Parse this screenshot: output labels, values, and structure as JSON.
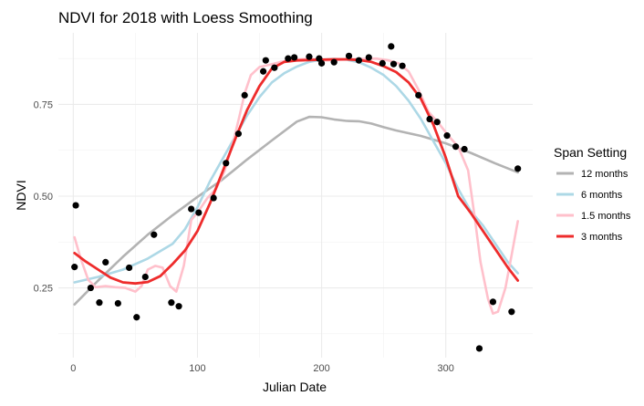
{
  "chart_data": {
    "type": "scatter",
    "title": "NDVI for 2018 with Loess Smoothing",
    "xlabel": "Julian Date",
    "ylabel": "NDVI",
    "xlim": [
      -12,
      370
    ],
    "ylim": [
      0.06,
      0.945
    ],
    "x_ticks": [
      0,
      100,
      200,
      300
    ],
    "x_tick_labels": [
      "0",
      "100",
      "200",
      "300"
    ],
    "y_ticks": [
      0.25,
      0.5,
      0.75
    ],
    "y_tick_labels": [
      "0.25",
      "0.50",
      "0.75"
    ],
    "grid": true,
    "legend_title": "Span Setting",
    "legend_position": "right",
    "points": [
      {
        "x": 1,
        "y": 0.307
      },
      {
        "x": 2,
        "y": 0.475
      },
      {
        "x": 14,
        "y": 0.25
      },
      {
        "x": 21,
        "y": 0.21
      },
      {
        "x": 26,
        "y": 0.32
      },
      {
        "x": 36,
        "y": 0.208
      },
      {
        "x": 45,
        "y": 0.305
      },
      {
        "x": 51,
        "y": 0.17
      },
      {
        "x": 58,
        "y": 0.28
      },
      {
        "x": 65,
        "y": 0.395
      },
      {
        "x": 79,
        "y": 0.21
      },
      {
        "x": 85,
        "y": 0.2
      },
      {
        "x": 95,
        "y": 0.465
      },
      {
        "x": 101,
        "y": 0.455
      },
      {
        "x": 113,
        "y": 0.495
      },
      {
        "x": 123,
        "y": 0.59
      },
      {
        "x": 133,
        "y": 0.67
      },
      {
        "x": 138,
        "y": 0.775
      },
      {
        "x": 153,
        "y": 0.84
      },
      {
        "x": 155,
        "y": 0.87
      },
      {
        "x": 162,
        "y": 0.85
      },
      {
        "x": 173,
        "y": 0.875
      },
      {
        "x": 178,
        "y": 0.878
      },
      {
        "x": 190,
        "y": 0.88
      },
      {
        "x": 198,
        "y": 0.875
      },
      {
        "x": 200,
        "y": 0.862
      },
      {
        "x": 210,
        "y": 0.865
      },
      {
        "x": 222,
        "y": 0.882
      },
      {
        "x": 230,
        "y": 0.87
      },
      {
        "x": 238,
        "y": 0.878
      },
      {
        "x": 249,
        "y": 0.862
      },
      {
        "x": 256,
        "y": 0.908
      },
      {
        "x": 258,
        "y": 0.86
      },
      {
        "x": 265,
        "y": 0.855
      },
      {
        "x": 278,
        "y": 0.775
      },
      {
        "x": 287,
        "y": 0.71
      },
      {
        "x": 293,
        "y": 0.702
      },
      {
        "x": 301,
        "y": 0.665
      },
      {
        "x": 308,
        "y": 0.635
      },
      {
        "x": 315,
        "y": 0.628
      },
      {
        "x": 327,
        "y": 0.085
      },
      {
        "x": 338,
        "y": 0.212
      },
      {
        "x": 353,
        "y": 0.185
      },
      {
        "x": 358,
        "y": 0.575
      }
    ],
    "series": [
      {
        "name": "12 months",
        "color": "#b3b3b3",
        "x": [
          1,
          20,
          40,
          60,
          80,
          100,
          120,
          140,
          160,
          180,
          190,
          200,
          210,
          220,
          230,
          240,
          250,
          260,
          280,
          300,
          320,
          340,
          358
        ],
        "y": [
          0.205,
          0.27,
          0.335,
          0.395,
          0.448,
          0.498,
          0.545,
          0.6,
          0.652,
          0.703,
          0.716,
          0.715,
          0.709,
          0.705,
          0.704,
          0.698,
          0.688,
          0.679,
          0.664,
          0.644,
          0.618,
          0.589,
          0.565
        ]
      },
      {
        "name": "6 months",
        "color": "#add8e6",
        "x": [
          1,
          20,
          40,
          60,
          80,
          90,
          100,
          110,
          120,
          130,
          140,
          150,
          160,
          170,
          180,
          190,
          200,
          210,
          220,
          230,
          240,
          250,
          260,
          270,
          280,
          290,
          300,
          310,
          320,
          330,
          340,
          350,
          358
        ],
        "y": [
          0.265,
          0.28,
          0.3,
          0.33,
          0.37,
          0.41,
          0.47,
          0.54,
          0.6,
          0.66,
          0.72,
          0.77,
          0.81,
          0.835,
          0.853,
          0.866,
          0.872,
          0.874,
          0.872,
          0.865,
          0.85,
          0.83,
          0.8,
          0.76,
          0.71,
          0.65,
          0.59,
          0.52,
          0.46,
          0.42,
          0.37,
          0.32,
          0.29
        ]
      },
      {
        "name": "1.5 months",
        "color": "#ffc0cb",
        "x": [
          1,
          6,
          12,
          18,
          26,
          34,
          42,
          50,
          55,
          60,
          66,
          72,
          78,
          83,
          89,
          95,
          101,
          108,
          115,
          122,
          129,
          134,
          138,
          143,
          150,
          158,
          166,
          176,
          190,
          204,
          218,
          232,
          244,
          254,
          262,
          270,
          278,
          286,
          294,
          302,
          310,
          318,
          323,
          328,
          334,
          338,
          342,
          348,
          353,
          358
        ],
        "y": [
          0.388,
          0.33,
          0.272,
          0.252,
          0.255,
          0.252,
          0.25,
          0.24,
          0.255,
          0.3,
          0.31,
          0.305,
          0.255,
          0.24,
          0.31,
          0.435,
          0.46,
          0.495,
          0.52,
          0.57,
          0.65,
          0.72,
          0.78,
          0.83,
          0.852,
          0.858,
          0.865,
          0.872,
          0.874,
          0.87,
          0.872,
          0.874,
          0.875,
          0.87,
          0.862,
          0.84,
          0.79,
          0.73,
          0.7,
          0.665,
          0.635,
          0.57,
          0.45,
          0.32,
          0.22,
          0.18,
          0.185,
          0.25,
          0.34,
          0.432
        ]
      },
      {
        "name": "3 months",
        "color": "#ee2c2c",
        "x": [
          1,
          10,
          20,
          30,
          40,
          50,
          60,
          70,
          80,
          90,
          100,
          110,
          120,
          130,
          140,
          150,
          160,
          170,
          180,
          190,
          200,
          210,
          220,
          230,
          240,
          250,
          260,
          270,
          280,
          290,
          300,
          310,
          320,
          330,
          340,
          350,
          358
        ],
        "y": [
          0.345,
          0.322,
          0.3,
          0.278,
          0.265,
          0.262,
          0.266,
          0.282,
          0.315,
          0.352,
          0.405,
          0.48,
          0.565,
          0.652,
          0.735,
          0.8,
          0.848,
          0.866,
          0.87,
          0.871,
          0.872,
          0.873,
          0.873,
          0.871,
          0.866,
          0.854,
          0.838,
          0.81,
          0.765,
          0.695,
          0.605,
          0.5,
          0.455,
          0.405,
          0.355,
          0.305,
          0.27
        ]
      }
    ]
  }
}
